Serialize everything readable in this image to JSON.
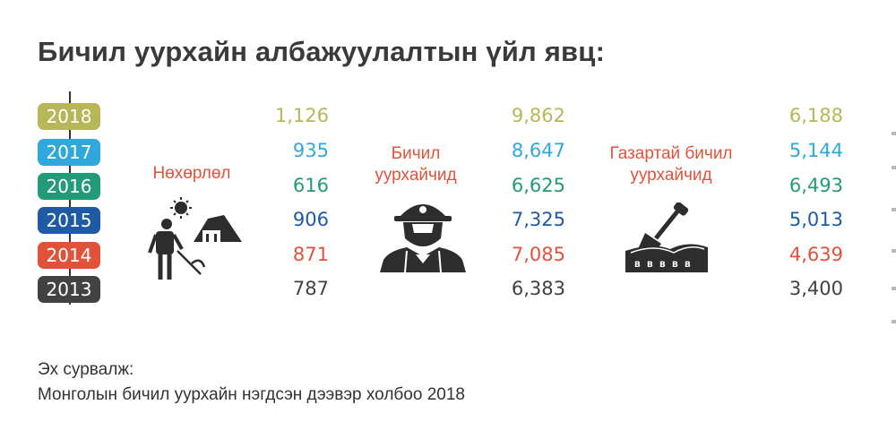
{
  "title": "Бичил уурхайн албажуулалтын үйл явц:",
  "source": {
    "label": "Эх сурвалж:",
    "text": "Монголын бичил уурхайн нэгдсэн дээвэр холбоо 2018"
  },
  "icons": [
    "miner-with-pickaxe-icon",
    "miner-helmet-worker-icon",
    "shovel-digging-icon"
  ],
  "year_colors": {
    "2018": "#b7b75a",
    "2017": "#31a8dc",
    "2016": "#239a78",
    "2015": "#1f5aa5",
    "2014": "#e0533a",
    "2013": "#424242"
  },
  "chart_data": {
    "type": "table",
    "title": "Бичил уурхайн албажуулалтын үйл явц:",
    "years": [
      "2018",
      "2017",
      "2016",
      "2015",
      "2014",
      "2013"
    ],
    "series": [
      {
        "name": "Нөхөрлөл",
        "display": [
          "1,126",
          "935",
          "616",
          "906",
          "871",
          "787"
        ],
        "values": [
          1126,
          935,
          616,
          906,
          871,
          787
        ]
      },
      {
        "name": "Бичил уурхайчид",
        "display": [
          "9,862",
          "8,647",
          "6,625",
          "7,325",
          "7,085",
          "6,383"
        ],
        "values": [
          9862,
          8647,
          6625,
          7325,
          7085,
          6383
        ]
      },
      {
        "name": "Газартай бичил уурхайчид",
        "display": [
          "6,188",
          "5,144",
          "6,493",
          "5,013",
          "4,639",
          "3,400"
        ],
        "values": [
          6188,
          5144,
          6493,
          5013,
          4639,
          3400
        ]
      }
    ]
  }
}
